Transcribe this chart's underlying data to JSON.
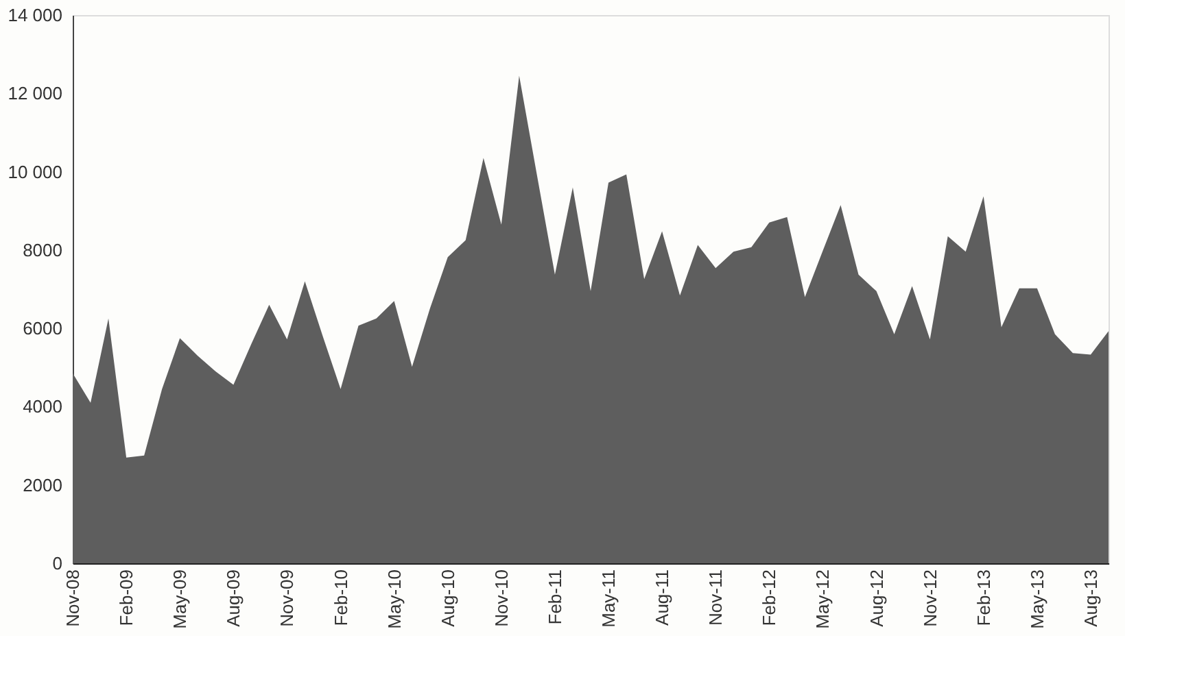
{
  "chart_data": {
    "type": "area",
    "categories": [
      "Nov-08",
      null,
      null,
      "Feb-09",
      null,
      null,
      "May-09",
      null,
      null,
      "Aug-09",
      null,
      null,
      "Nov-09",
      null,
      null,
      "Feb-10",
      null,
      null,
      "May-10",
      null,
      null,
      "Aug-10",
      null,
      null,
      "Nov-10",
      null,
      null,
      "Feb-11",
      null,
      null,
      "May-11",
      null,
      null,
      "Aug-11",
      null,
      null,
      "Nov-11",
      null,
      null,
      "Feb-12",
      null,
      null,
      "May-12",
      null,
      null,
      "Aug-12",
      null,
      null,
      "Nov-12",
      null,
      null,
      "Feb-13",
      null,
      null,
      "May-13",
      null,
      null,
      "Aug-13",
      null
    ],
    "values": [
      4850,
      4100,
      6250,
      2700,
      2750,
      4450,
      5750,
      5300,
      4900,
      4560,
      5600,
      6600,
      5720,
      7200,
      5800,
      4450,
      6070,
      6250,
      6700,
      5020,
      6500,
      7820,
      8250,
      10350,
      8650,
      12450,
      9900,
      7370,
      9600,
      6950,
      9720,
      9930,
      7260,
      8480,
      6840,
      8130,
      7540,
      7960,
      8070,
      8700,
      8840,
      6800,
      7980,
      9150,
      7370,
      6950,
      5850,
      7080,
      5720,
      8350,
      7960,
      9370,
      6030,
      7020,
      7020,
      5850,
      5370,
      5330,
      5930
    ],
    "color": "#5e5e5e",
    "ylim": [
      0,
      14000
    ],
    "yticks": [
      0,
      2000,
      4000,
      6000,
      8000,
      {
        "value": 10000,
        "label": "10 000"
      },
      {
        "value": 12000,
        "label": "12 000"
      },
      {
        "value": 14000,
        "label": "14 000"
      }
    ],
    "grid": false
  }
}
